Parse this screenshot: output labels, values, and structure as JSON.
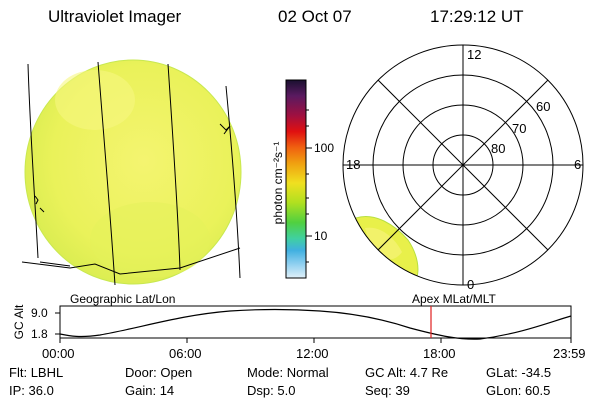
{
  "header": {
    "instrument": "Ultraviolet Imager",
    "date": "02 Oct 07",
    "time": "17:29:12 UT"
  },
  "colorbar": {
    "label": "photon cm⁻²s⁻¹",
    "ticks": [
      "100",
      "10"
    ],
    "colors": [
      "#1a1030",
      "#5a1a60",
      "#a01040",
      "#e01010",
      "#f06010",
      "#f0a010",
      "#f0e020",
      "#b0e020",
      "#50d040",
      "#40d0a0",
      "#40b0e0",
      "#90d0f0",
      "#e0f0f8"
    ]
  },
  "polar_plot": {
    "mlt_labels": [
      "12",
      "18",
      "6",
      "0"
    ],
    "lat_labels": [
      "60",
      "70",
      "80"
    ]
  },
  "map_labels": {
    "left": "Geographic Lat/Lon",
    "right": "Apex MLat/MLT"
  },
  "altitude_panel": {
    "ylabel": "GC Alt",
    "yticks": [
      "9.0",
      "1.8"
    ],
    "xticks": [
      "00:00",
      "06:00",
      "12:00",
      "18:00",
      "23:59"
    ],
    "current_time_marker": "17:29"
  },
  "status": {
    "row1": [
      {
        "label": "Flt:",
        "value": "LBHL"
      },
      {
        "label": "Door:",
        "value": "Open"
      },
      {
        "label": "Mode:",
        "value": "Normal"
      },
      {
        "label": "GC Alt:",
        "value": "4.7 Re"
      },
      {
        "label": "GLat:",
        "value": "-34.5"
      }
    ],
    "row2": [
      {
        "label": "IP:",
        "value": "36.0"
      },
      {
        "label": "Gain:",
        "value": "14"
      },
      {
        "label": "Dsp:",
        "value": "5.0"
      },
      {
        "label": "Seq:",
        "value": "39"
      },
      {
        "label": "GLon:",
        "value": "60.5"
      }
    ]
  }
}
